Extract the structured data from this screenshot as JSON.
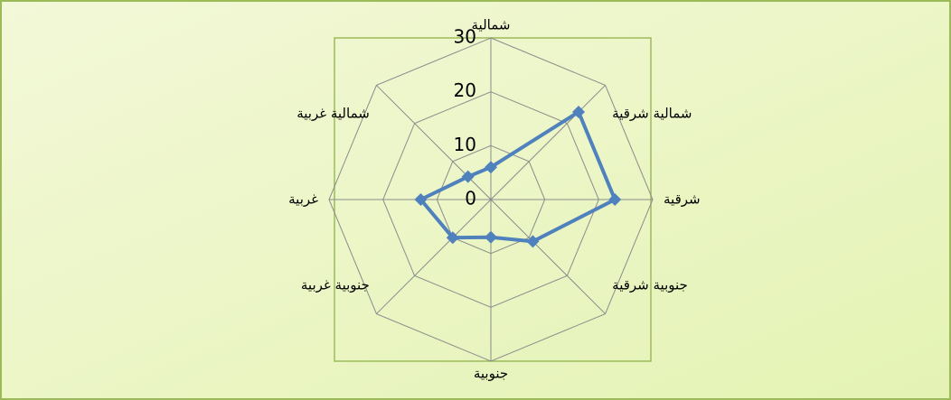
{
  "chart_data": {
    "type": "radar",
    "categories": [
      "شمالية",
      "شمالية شرقية",
      "شرقية",
      "جنوبية شرقية",
      "جنوبية",
      "جنوبية غربية",
      "غربية",
      "شمالية غربية"
    ],
    "values": [
      6,
      23,
      23,
      11,
      7,
      10,
      13,
      6
    ],
    "color": "#4f81bd",
    "rlim": [
      0,
      30
    ],
    "rticks": [
      0,
      10,
      20,
      30
    ],
    "grid": true
  }
}
